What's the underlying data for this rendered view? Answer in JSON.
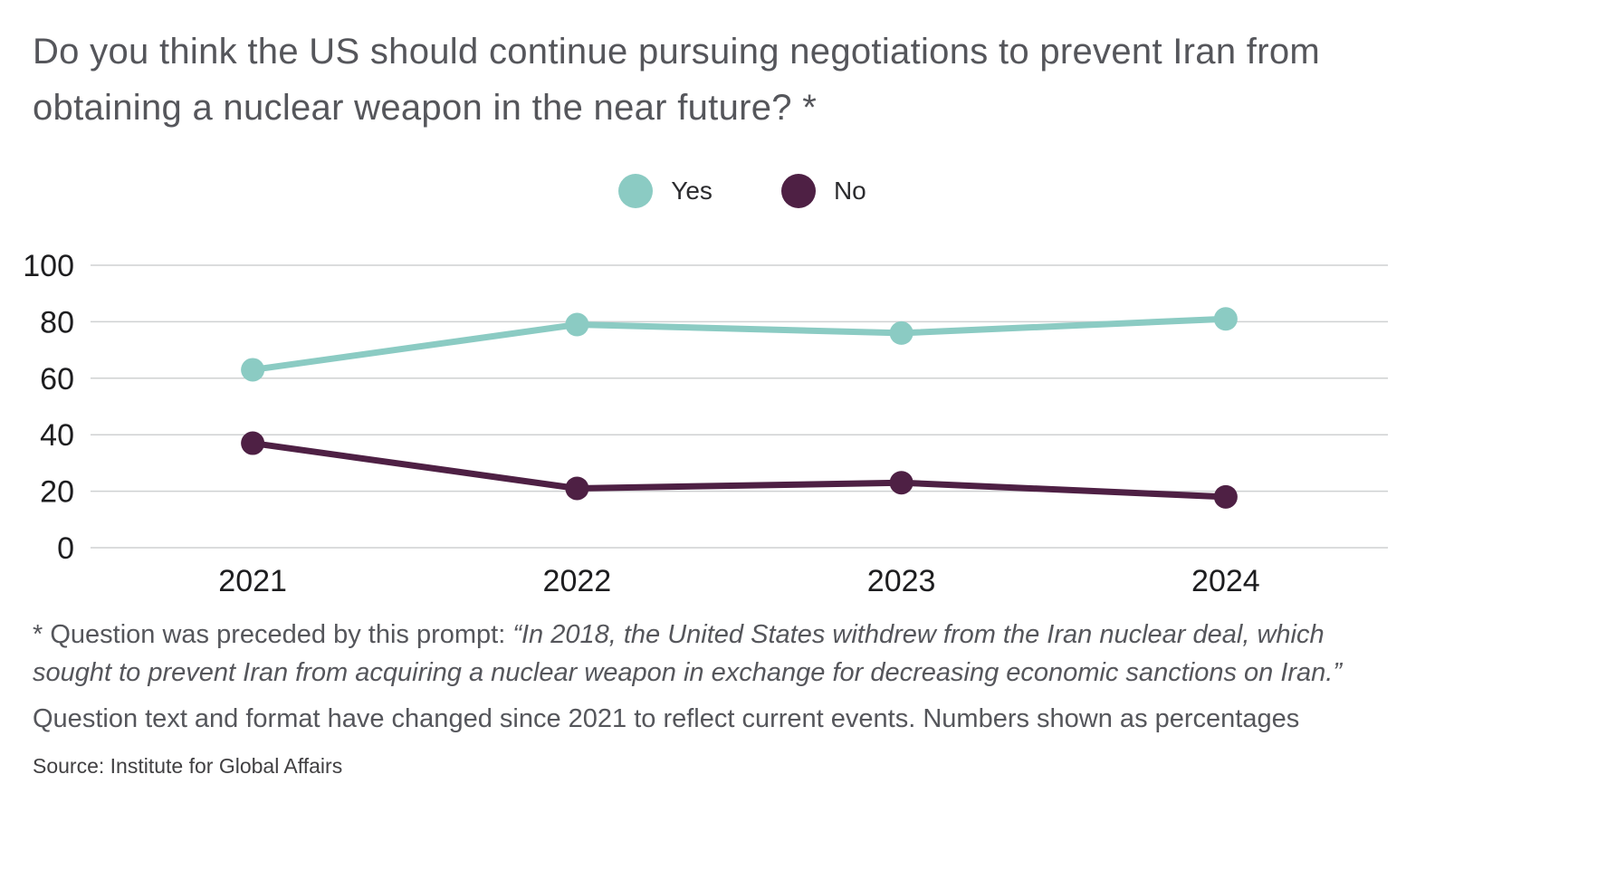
{
  "title": "Do you think the US should continue pursuing negotiations to prevent Iran from obtaining a nuclear weapon in the near future? *",
  "legend": [
    {
      "label": "Yes",
      "color": "#8bcbc3"
    },
    {
      "label": "No",
      "color": "#4e2044"
    }
  ],
  "chart_data": {
    "type": "line",
    "x": [
      "2021",
      "2022",
      "2023",
      "2024"
    ],
    "series": [
      {
        "name": "Yes",
        "color": "#8bcbc3",
        "values": [
          63,
          79,
          76,
          81
        ]
      },
      {
        "name": "No",
        "color": "#4e2044",
        "values": [
          37,
          21,
          23,
          18
        ]
      }
    ],
    "title": "Do you think the US should continue pursuing negotiations to prevent Iran from obtaining a nuclear weapon in the near future? *",
    "xlabel": "",
    "ylabel": "",
    "ylim": [
      0,
      100
    ],
    "yticks": [
      0,
      20,
      40,
      60,
      80,
      100
    ],
    "grid": "horizontal",
    "legend_position": "top-center",
    "units": "percent"
  },
  "footnotes": {
    "asterisk_prefix": "* Question was preceded by this prompt: ",
    "prompt_quote": "“In 2018, the United States withdrew from the Iran nuclear deal, which sought to prevent Iran from acquiring a nuclear weapon in exchange for decreasing economic sanctions on Iran.”",
    "note": "Question text and format have changed since 2021 to reflect current events. Numbers shown as percentages",
    "source": "Source: Institute for Global Affairs"
  }
}
